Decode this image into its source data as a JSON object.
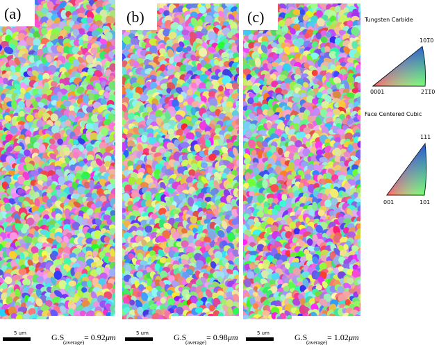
{
  "panels": [
    {
      "label": "(a)",
      "scale_bar": "5 um",
      "caption": {
        "prefix": "G.S",
        "subscript": "(average)",
        "value": "= 0.92",
        "unit": "μm"
      }
    },
    {
      "label": "(b)",
      "scale_bar": "5 um",
      "caption": {
        "prefix": "G.S",
        "subscript": "(average)",
        "value": "= 0.98",
        "unit": "μm"
      }
    },
    {
      "label": "(c)",
      "scale_bar": "5 um",
      "caption": {
        "prefix": "G.S",
        "subscript": "(average)",
        "value": "= 1.02",
        "unit": "μm"
      }
    }
  ],
  "legend": {
    "tungsten_carbide": {
      "title": "Tungsten Carbide",
      "top": "101̅0",
      "left": "0001",
      "right": "21̅1̅0"
    },
    "fcc": {
      "title": "Face Centered Cubic",
      "top": "111",
      "left": "001",
      "right": "101"
    }
  }
}
